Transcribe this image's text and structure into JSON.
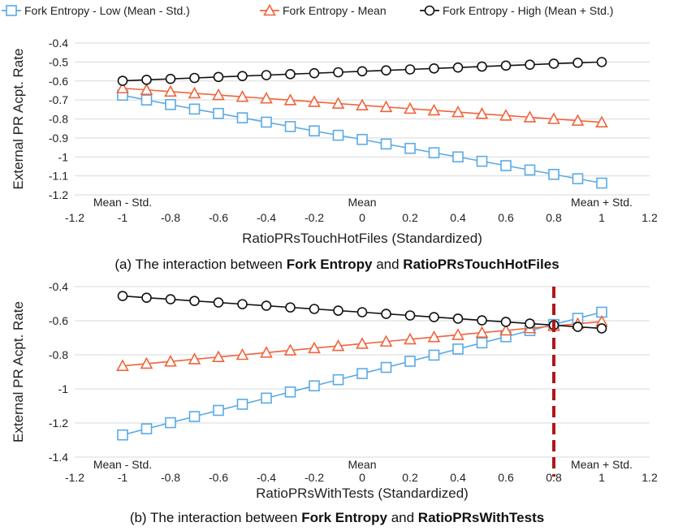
{
  "legend": [
    {
      "label": "Fork Entropy - Low (Mean - Std.)",
      "color": "#5aaae6",
      "marker": "square"
    },
    {
      "label": "Fork Entropy - Mean",
      "color": "#f0643c",
      "marker": "triangle"
    },
    {
      "label": "Fork Entropy - High (Mean + Std.)",
      "color": "#111111",
      "marker": "circle"
    }
  ],
  "chart_data": [
    {
      "type": "line",
      "title": "",
      "caption_prefix": "(a) The interaction between ",
      "caption_bold1": "Fork Entropy",
      "caption_mid": " and ",
      "caption_bold2": "RatioPRsTouchHotFiles",
      "xlabel": "RatioPRsTouchHotFiles (Standardized)",
      "ylabel": "External PR Acpt. Rate",
      "xlim": [
        -1.2,
        1.2
      ],
      "ylim": [
        -1.2,
        -0.4
      ],
      "xticks": [
        "-1.2",
        "-1",
        "-0.8",
        "-0.6",
        "-0.4",
        "-0.2",
        "0",
        "0.2",
        "0.4",
        "0.6",
        "0.8",
        "1",
        "1.2"
      ],
      "yticks": [
        "-0.4",
        "-0.5",
        "-0.6",
        "-0.7",
        "-0.8",
        "-0.9",
        "-1",
        "-1.1",
        "-1.2"
      ],
      "annotations": [
        "Mean - Std.",
        "Mean",
        "Mean + Std."
      ],
      "x": [
        -1,
        -0.9,
        -0.8,
        -0.7,
        -0.6,
        -0.5,
        -0.4,
        -0.3,
        -0.2,
        -0.1,
        0,
        0.1,
        0.2,
        0.3,
        0.4,
        0.5,
        0.6,
        0.7,
        0.8,
        0.9,
        1
      ],
      "series": [
        {
          "name": "Fork Entropy - Low (Mean - Std.)",
          "values": [
            -0.675,
            -0.7,
            -0.724,
            -0.748,
            -0.771,
            -0.794,
            -0.817,
            -0.84,
            -0.863,
            -0.886,
            -0.908,
            -0.932,
            -0.955,
            -0.978,
            -1.0,
            -1.023,
            -1.046,
            -1.069,
            -1.092,
            -1.115,
            -1.138
          ]
        },
        {
          "name": "Fork Entropy - Mean",
          "values": [
            -0.638,
            -0.647,
            -0.656,
            -0.665,
            -0.674,
            -0.683,
            -0.692,
            -0.701,
            -0.71,
            -0.719,
            -0.728,
            -0.737,
            -0.746,
            -0.755,
            -0.764,
            -0.773,
            -0.782,
            -0.791,
            -0.8,
            -0.809,
            -0.818
          ]
        },
        {
          "name": "Fork Entropy - High (Mean + Std.)",
          "values": [
            -0.599,
            -0.594,
            -0.589,
            -0.584,
            -0.579,
            -0.574,
            -0.569,
            -0.564,
            -0.559,
            -0.554,
            -0.549,
            -0.544,
            -0.539,
            -0.534,
            -0.529,
            -0.524,
            -0.519,
            -0.514,
            -0.509,
            -0.504,
            -0.5
          ]
        }
      ]
    },
    {
      "type": "line",
      "title": "",
      "caption_prefix": "(b) The interaction between ",
      "caption_bold1": "Fork Entropy",
      "caption_mid": " and ",
      "caption_bold2": "RatioPRsWithTests",
      "xlabel": "RatioPRsWithTests (Standardized)",
      "ylabel": "External PR Acpt. Rate",
      "xlim": [
        -1.2,
        1.2
      ],
      "ylim": [
        -1.4,
        -0.4
      ],
      "xticks": [
        "-1.2",
        "-1",
        "-0.8",
        "-0.6",
        "-0.4",
        "-0.2",
        "0",
        "0.2",
        "0.4",
        "0.6",
        "0.8",
        "1",
        "1.2"
      ],
      "yticks": [
        "-0.4",
        "-0.6",
        "-0.8",
        "-1",
        "-1.2",
        "-1.4"
      ],
      "annotations": [
        "Mean - Std.",
        "Mean",
        "Mean + Std."
      ],
      "vline_x": 0.8,
      "vline_color": "#b01818",
      "x": [
        -1,
        -0.9,
        -0.8,
        -0.7,
        -0.6,
        -0.5,
        -0.4,
        -0.3,
        -0.2,
        -0.1,
        0,
        0.1,
        0.2,
        0.3,
        0.4,
        0.5,
        0.6,
        0.7,
        0.8,
        0.9,
        1
      ],
      "series": [
        {
          "name": "Fork Entropy - Low (Mean - Std.)",
          "values": [
            -1.27,
            -1.234,
            -1.198,
            -1.162,
            -1.126,
            -1.09,
            -1.054,
            -1.018,
            -0.982,
            -0.946,
            -0.91,
            -0.874,
            -0.838,
            -0.802,
            -0.766,
            -0.73,
            -0.694,
            -0.658,
            -0.622,
            -0.586,
            -0.55
          ]
        },
        {
          "name": "Fork Entropy - Mean",
          "values": [
            -0.865,
            -0.852,
            -0.839,
            -0.826,
            -0.813,
            -0.8,
            -0.787,
            -0.774,
            -0.761,
            -0.748,
            -0.735,
            -0.722,
            -0.709,
            -0.696,
            -0.683,
            -0.67,
            -0.657,
            -0.644,
            -0.631,
            -0.618,
            -0.605
          ]
        },
        {
          "name": "Fork Entropy - High (Mean + Std.)",
          "values": [
            -0.455,
            -0.465,
            -0.474,
            -0.484,
            -0.493,
            -0.503,
            -0.512,
            -0.522,
            -0.531,
            -0.541,
            -0.55,
            -0.56,
            -0.569,
            -0.579,
            -0.588,
            -0.598,
            -0.607,
            -0.617,
            -0.626,
            -0.636,
            -0.645
          ]
        }
      ]
    }
  ]
}
